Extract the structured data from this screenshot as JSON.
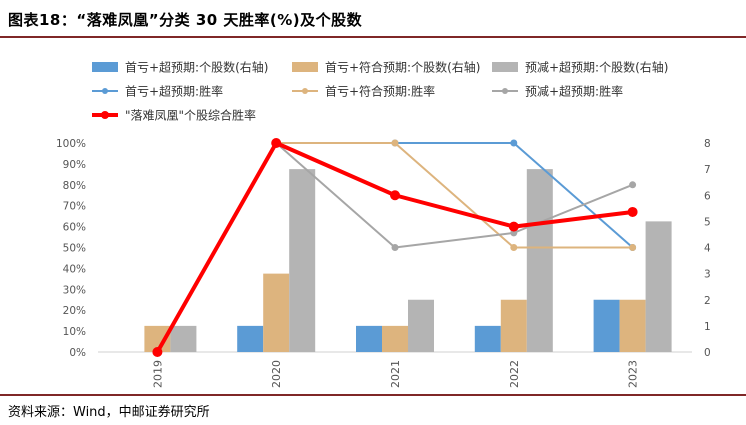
{
  "title": "图表18：“落难凤凰”分类 30 天胜率(%)及个股数",
  "source": "资料来源：Wind，中邮证券研究所",
  "chart_data": {
    "type": "bar",
    "categories": [
      "2019",
      "2020",
      "2021",
      "2022",
      "2023"
    ],
    "left_axis": {
      "min": 0,
      "max": 100,
      "step": 10,
      "tick_labels": [
        "0%",
        "10%",
        "20%",
        "30%",
        "40%",
        "50%",
        "60%",
        "70%",
        "80%",
        "90%",
        "100%"
      ]
    },
    "right_axis": {
      "min": 0,
      "max": 8,
      "step": 1,
      "tick_labels": [
        "0",
        "1",
        "2",
        "3",
        "4",
        "5",
        "6",
        "7",
        "8"
      ]
    },
    "bar_series": [
      {
        "name": "首亏+超预期:个股数(右轴)",
        "color": "#5b9bd5",
        "values": [
          0,
          1,
          1,
          1,
          2
        ]
      },
      {
        "name": "首亏+符合预期:个股数(右轴)",
        "color": "#ddb47e",
        "values": [
          1,
          3,
          1,
          2,
          2
        ]
      },
      {
        "name": "预减+超预期:个股数(右轴)",
        "color": "#b4b4b4",
        "values": [
          1,
          7,
          2,
          7,
          5
        ]
      }
    ],
    "line_series": [
      {
        "name": "首亏+超预期:胜率",
        "color": "#5b9bd5",
        "values": [
          null,
          100,
          100,
          100,
          50
        ],
        "marker": true,
        "width": 2
      },
      {
        "name": "首亏+符合预期:胜率",
        "color": "#ddb47e",
        "values": [
          null,
          100,
          100,
          50,
          50
        ],
        "marker": true,
        "width": 2
      },
      {
        "name": "预减+超预期:胜率",
        "color": "#a6a6a6",
        "values": [
          null,
          100,
          50,
          57,
          80
        ],
        "marker": true,
        "width": 2
      },
      {
        "name": "\"落难凤凰\"个股综合胜率",
        "color": "#ff0000",
        "values": [
          0,
          100,
          75,
          60,
          67
        ],
        "marker": true,
        "width": 4
      }
    ],
    "legend_position": "top"
  }
}
